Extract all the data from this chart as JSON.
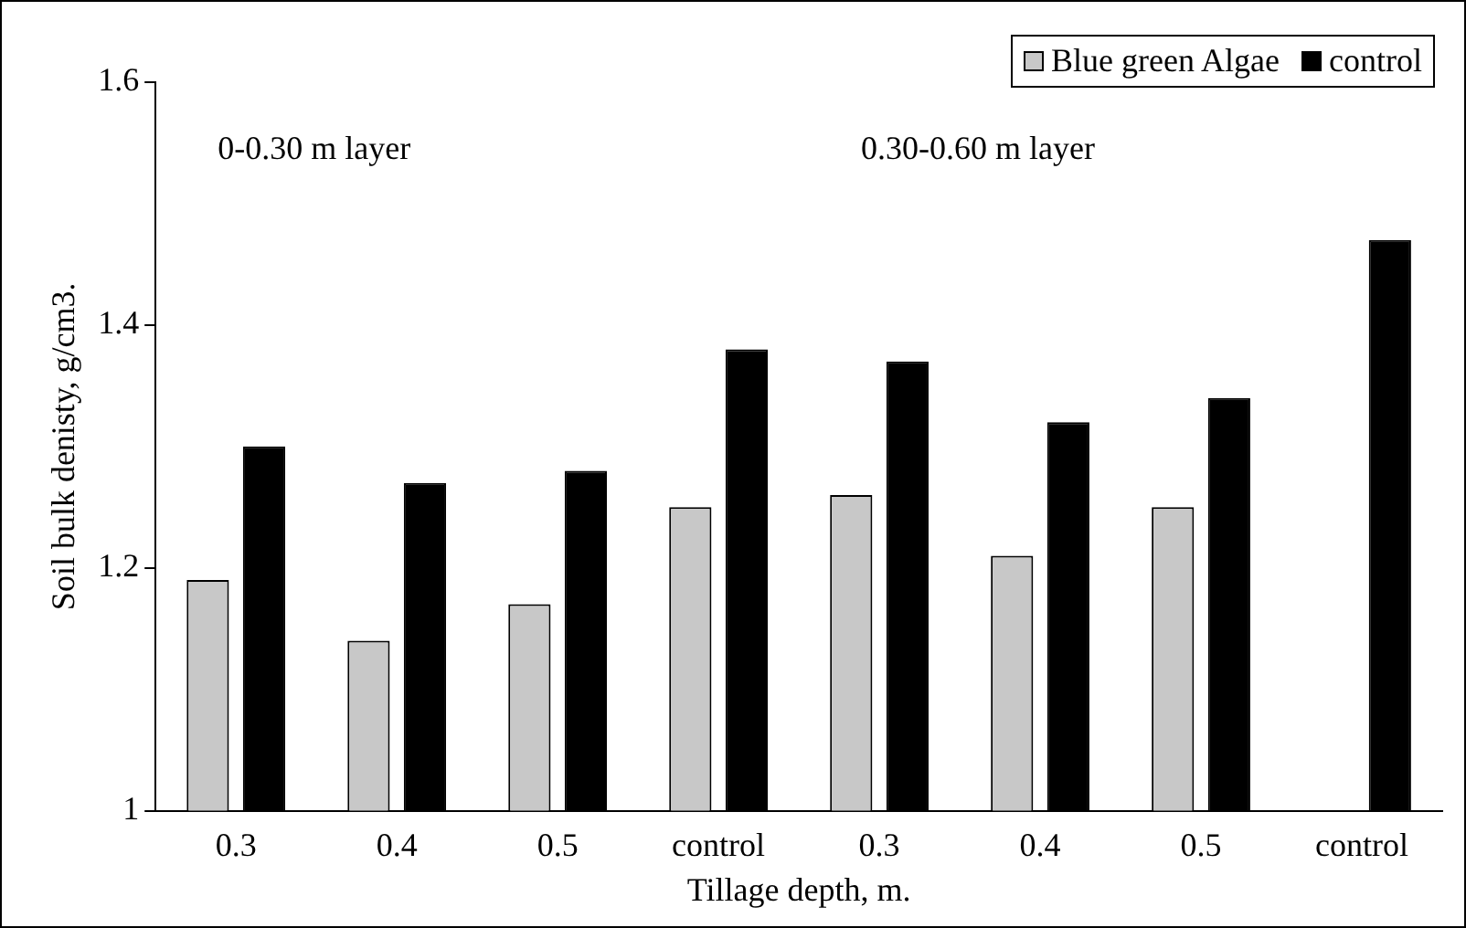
{
  "chart_data": {
    "type": "bar",
    "xlabel": "Tillage depth, m.",
    "ylabel": "Soil bulk denisty, g/cm3.",
    "categories": [
      "0.3",
      "0.4",
      "0.5",
      "control",
      "0.3",
      "0.4",
      "0.5",
      "control"
    ],
    "series": [
      {
        "name": "Blue green Algae",
        "color": "#c8c8c8",
        "values": [
          1.19,
          1.14,
          1.17,
          1.25,
          1.26,
          1.21,
          1.25,
          null
        ]
      },
      {
        "name": "control",
        "color": "#000000",
        "values": [
          1.3,
          1.27,
          1.28,
          1.38,
          1.37,
          1.32,
          1.34,
          1.47
        ]
      }
    ],
    "ylim": [
      1,
      1.6
    ],
    "yticks": [
      1,
      1.2,
      1.4,
      1.6
    ],
    "grid": false,
    "legend": "top right",
    "annotations": [
      "0-0.30 m layer",
      "0.30-0.60 m layer"
    ]
  }
}
